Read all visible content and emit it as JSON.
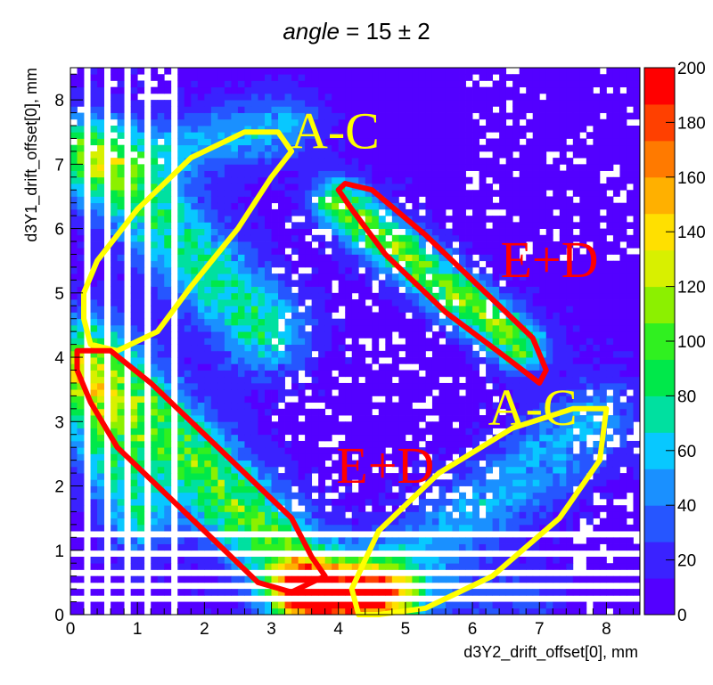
{
  "chart_data": {
    "type": "heatmap",
    "title_var": "angle",
    "title_rest": " = 15 ± 2",
    "xlabel": "d3Y2_drift_offset[0], mm",
    "ylabel": "d3Y1_drift_offset[0], mm",
    "xlim": [
      0,
      8.5
    ],
    "ylim": [
      0,
      8.5
    ],
    "x_ticks": [
      "0",
      "1",
      "2",
      "3",
      "4",
      "5",
      "6",
      "7",
      "8"
    ],
    "y_ticks": [
      "0",
      "1",
      "2",
      "3",
      "4",
      "5",
      "6",
      "7",
      "8"
    ],
    "z_range": [
      0,
      200
    ],
    "z_ticks": [
      "0",
      "20",
      "40",
      "60",
      "80",
      "100",
      "120",
      "140",
      "160",
      "180",
      "200"
    ],
    "bins": 85,
    "colormap": [
      "#5300ff",
      "#3a22ff",
      "#2656ff",
      "#1a90ff",
      "#08c8ff",
      "#00e0a0",
      "#00e84a",
      "#30f020",
      "#8cf000",
      "#d8f000",
      "#ffe000",
      "#ffb000",
      "#ff7a00",
      "#ff4000",
      "#ff0000"
    ],
    "empty_bins": {
      "x_columns": [
        0.25,
        0.55,
        0.85,
        1.15,
        1.55
      ],
      "y_rows": [
        0.25,
        0.45,
        0.65,
        0.95,
        1.25
      ],
      "scatter_regions": [
        [
          3.0,
          6.5,
          1.5,
          6.5
        ],
        [
          5.8,
          8.5,
          5.5,
          8.5
        ],
        [
          7.5,
          8.5,
          0,
          3.5
        ],
        [
          0,
          1.6,
          7.0,
          8.5
        ]
      ]
    },
    "bands": [
      {
        "from": [
          0.3,
          7.2
        ],
        "to": [
          2.9,
          4.4
        ],
        "width": 0.45,
        "peak": 70
      },
      {
        "from": [
          0.4,
          7.0
        ],
        "to": [
          3.2,
          7.6
        ],
        "width": 0.35,
        "peak": 45
      },
      {
        "from": [
          4.0,
          6.4
        ],
        "to": [
          6.7,
          4.2
        ],
        "width": 0.28,
        "peak": 95
      },
      {
        "from": [
          0.3,
          4.0
        ],
        "to": [
          3.6,
          0.5
        ],
        "width": 0.45,
        "peak": 90
      },
      {
        "from": [
          0.1,
          3.6
        ],
        "to": [
          1.0,
          1.5
        ],
        "width": 0.35,
        "peak": 60
      },
      {
        "from": [
          3.6,
          0.3
        ],
        "to": [
          4.6,
          0.3
        ],
        "width": 0.35,
        "peak": 150
      },
      {
        "from": [
          4.5,
          0.4
        ],
        "to": [
          7.8,
          3.0
        ],
        "width": 0.45,
        "peak": 45
      },
      {
        "from": [
          3.0,
          0.3
        ],
        "to": [
          7.0,
          0.3
        ],
        "width": 0.25,
        "peak": 25
      }
    ],
    "annotations": [
      {
        "text": "A-C",
        "x": 3.95,
        "y": 7.25,
        "color": "#ffff00"
      },
      {
        "text": "E+D",
        "x": 7.15,
        "y": 5.25,
        "color": "#ff0000"
      },
      {
        "text": "A-C",
        "x": 6.9,
        "y": 2.95,
        "color": "#ffff00"
      },
      {
        "text": "E+D",
        "x": 4.7,
        "y": 2.05,
        "color": "#ff0000"
      }
    ],
    "contours": [
      {
        "color": "#ffff00",
        "points": [
          [
            0.2,
            5.0
          ],
          [
            0.4,
            5.5
          ],
          [
            1.0,
            6.3
          ],
          [
            1.8,
            7.1
          ],
          [
            2.6,
            7.5
          ],
          [
            3.1,
            7.5
          ],
          [
            3.3,
            7.2
          ],
          [
            3.0,
            6.8
          ],
          [
            2.5,
            6.0
          ],
          [
            1.8,
            5.1
          ],
          [
            1.3,
            4.4
          ],
          [
            0.7,
            4.1
          ],
          [
            0.3,
            4.2
          ],
          [
            0.2,
            4.6
          ]
        ]
      },
      {
        "color": "#ff0000",
        "points": [
          [
            4.1,
            6.7
          ],
          [
            4.5,
            6.6
          ],
          [
            5.3,
            5.9
          ],
          [
            6.2,
            5.0
          ],
          [
            6.9,
            4.3
          ],
          [
            7.1,
            3.8
          ],
          [
            7.0,
            3.6
          ],
          [
            6.5,
            4.0
          ],
          [
            5.6,
            4.7
          ],
          [
            4.7,
            5.6
          ],
          [
            4.2,
            6.3
          ],
          [
            4.0,
            6.6
          ]
        ]
      },
      {
        "color": "#ffff00",
        "points": [
          [
            4.3,
            0.0
          ],
          [
            4.2,
            0.4
          ],
          [
            4.6,
            1.3
          ],
          [
            5.5,
            2.2
          ],
          [
            6.6,
            2.9
          ],
          [
            7.5,
            3.2
          ],
          [
            8.0,
            3.2
          ],
          [
            7.9,
            2.4
          ],
          [
            7.3,
            1.5
          ],
          [
            6.3,
            0.6
          ],
          [
            5.3,
            0.1
          ],
          [
            4.6,
            0.0
          ]
        ]
      },
      {
        "color": "#ff0000",
        "points": [
          [
            0.1,
            4.1
          ],
          [
            0.6,
            4.1
          ],
          [
            1.2,
            3.6
          ],
          [
            2.0,
            2.8
          ],
          [
            2.7,
            2.1
          ],
          [
            3.3,
            1.5
          ],
          [
            3.6,
            0.9
          ],
          [
            3.8,
            0.6
          ],
          [
            3.6,
            0.5
          ],
          [
            3.3,
            0.35
          ],
          [
            2.8,
            0.5
          ],
          [
            2.1,
            1.2
          ],
          [
            1.4,
            1.9
          ],
          [
            0.7,
            2.6
          ],
          [
            0.3,
            3.3
          ],
          [
            0.1,
            3.8
          ]
        ]
      }
    ]
  }
}
